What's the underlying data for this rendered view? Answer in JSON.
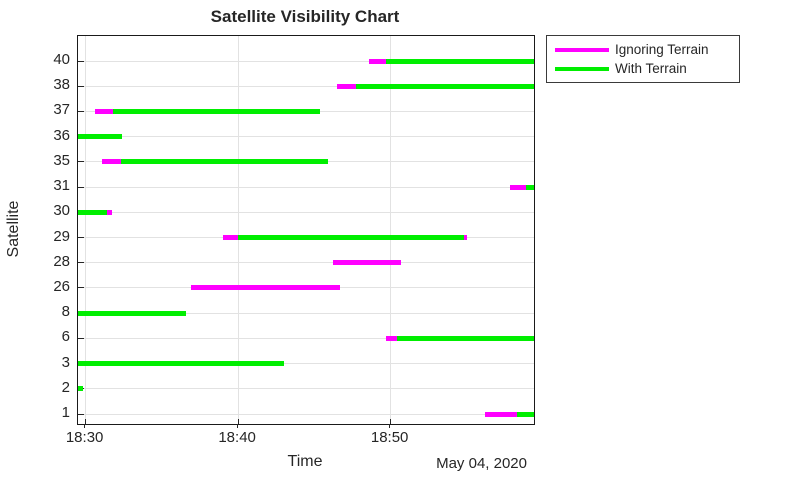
{
  "title": "Satellite Visibility Chart",
  "chart_data": {
    "type": "gantt",
    "title": "Satellite Visibility Chart",
    "xlabel": "Time",
    "x_secondary_label": "May 04, 2020",
    "ylabel": "Satellite",
    "grid": true,
    "legend_position": "outside top-right",
    "x_ticks": [
      {
        "label": "18:30",
        "min": 30
      },
      {
        "label": "18:40",
        "min": 40
      },
      {
        "label": "18:50",
        "min": 50
      }
    ],
    "x_range": {
      "unit": "minutes after 18:00 on May 04, 2020",
      "min": 29.5,
      "max": 59.4
    },
    "y_categories": [
      "40",
      "38",
      "37",
      "36",
      "35",
      "31",
      "30",
      "29",
      "28",
      "26",
      "8",
      "6",
      "3",
      "2",
      "1"
    ],
    "series": [
      {
        "name": "Ignoring Terrain",
        "color": "#FF00FF"
      },
      {
        "name": "With Terrain",
        "color": "#00EE00"
      }
    ],
    "segments": [
      {
        "satellite": "40",
        "series": "Ignoring Terrain",
        "start": 48.6,
        "end": 49.7
      },
      {
        "satellite": "40",
        "series": "With Terrain",
        "start": 49.7,
        "end": 59.4
      },
      {
        "satellite": "38",
        "series": "Ignoring Terrain",
        "start": 46.5,
        "end": 47.7
      },
      {
        "satellite": "38",
        "series": "With Terrain",
        "start": 47.7,
        "end": 59.4
      },
      {
        "satellite": "37",
        "series": "Ignoring Terrain",
        "start": 30.6,
        "end": 31.8
      },
      {
        "satellite": "37",
        "series": "With Terrain",
        "start": 31.8,
        "end": 45.4
      },
      {
        "satellite": "36",
        "series": "With Terrain",
        "start": 29.5,
        "end": 32.4
      },
      {
        "satellite": "35",
        "series": "Ignoring Terrain",
        "start": 31.1,
        "end": 32.3
      },
      {
        "satellite": "35",
        "series": "With Terrain",
        "start": 32.3,
        "end": 45.9
      },
      {
        "satellite": "31",
        "series": "Ignoring Terrain",
        "start": 57.8,
        "end": 58.9
      },
      {
        "satellite": "31",
        "series": "With Terrain",
        "start": 58.9,
        "end": 59.4
      },
      {
        "satellite": "30",
        "series": "With Terrain",
        "start": 29.5,
        "end": 31.4
      },
      {
        "satellite": "30",
        "series": "Ignoring Terrain",
        "start": 31.4,
        "end": 31.7
      },
      {
        "satellite": "29",
        "series": "Ignoring Terrain",
        "start": 39.0,
        "end": 40.0
      },
      {
        "satellite": "29",
        "series": "With Terrain",
        "start": 40.0,
        "end": 54.8
      },
      {
        "satellite": "29",
        "series": "Ignoring Terrain",
        "start": 54.8,
        "end": 55.0
      },
      {
        "satellite": "28",
        "series": "Ignoring Terrain",
        "start": 46.2,
        "end": 50.7
      },
      {
        "satellite": "26",
        "series": "Ignoring Terrain",
        "start": 36.9,
        "end": 46.7
      },
      {
        "satellite": "8",
        "series": "With Terrain",
        "start": 29.5,
        "end": 36.6
      },
      {
        "satellite": "6",
        "series": "Ignoring Terrain",
        "start": 49.7,
        "end": 50.4
      },
      {
        "satellite": "6",
        "series": "With Terrain",
        "start": 50.4,
        "end": 59.4
      },
      {
        "satellite": "3",
        "series": "With Terrain",
        "start": 29.5,
        "end": 43.0
      },
      {
        "satellite": "2",
        "series": "With Terrain",
        "start": 29.5,
        "end": 29.8
      },
      {
        "satellite": "1",
        "series": "Ignoring Terrain",
        "start": 56.2,
        "end": 58.3
      },
      {
        "satellite": "1",
        "series": "With Terrain",
        "start": 58.3,
        "end": 59.4
      }
    ]
  },
  "legend": {
    "items": [
      {
        "label": "Ignoring Terrain",
        "color": "#FF00FF"
      },
      {
        "label": "With Terrain",
        "color": "#00EE00"
      }
    ]
  }
}
